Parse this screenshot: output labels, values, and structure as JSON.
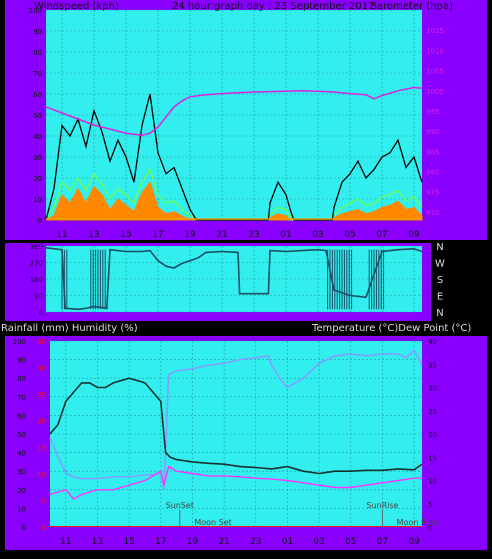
{
  "header": {
    "left_title": "Windspeed (kph)",
    "center_title": "24 hour graph day : 23 September 2017",
    "right_title": "Barometer (hpa)"
  },
  "mid_header": {
    "left": "Rainfall (mm)  Humidity (%)",
    "right": "Temperature (°C)Dew Point (°C)"
  },
  "colors": {
    "frame": "#8a00ff",
    "plot_bg": "#33eeee",
    "grid": "#20a0a0",
    "wind_gust": "#000000",
    "wind_avg": "#66ff55",
    "wind_fill": "#ff8800",
    "barometer": "#dd22dd",
    "direction": "#1a4f66",
    "humidity": "#8899ff",
    "temperature": "#16322e",
    "dewpoint": "#ff33ff",
    "rain_axis": "#ff1111"
  },
  "chart_data": [
    {
      "type": "line",
      "name": "wind_and_barometer",
      "x_ticks": [
        "11",
        "13",
        "15",
        "17",
        "19",
        "21",
        "23",
        "01",
        "03",
        "05",
        "07",
        "09"
      ],
      "y_left_ticks": [
        "0",
        "10",
        "20",
        "30",
        "40",
        "50",
        "60",
        "70",
        "80",
        "90",
        "100"
      ],
      "y_left_range": [
        0,
        100
      ],
      "y_right_ticks": [
        "970",
        "975",
        "980",
        "985",
        "990",
        "995",
        "1000",
        "1005",
        "1010",
        "1015"
      ],
      "y_right_range": [
        968,
        1020
      ],
      "series": [
        {
          "key": "gust",
          "hours": [
            10.0,
            10.5,
            11.0,
            11.5,
            12.0,
            12.5,
            13.0,
            13.5,
            14.0,
            14.5,
            15.0,
            15.5,
            16.0,
            16.5,
            17.0,
            17.5,
            18.0,
            18.5,
            19.0,
            19.4,
            19.6,
            23.9,
            24.0,
            24.5,
            25.0,
            25.3,
            25.5,
            27.9,
            28.0,
            28.5,
            29.0,
            29.5,
            30.0,
            30.5,
            31.0,
            31.5,
            32.0,
            32.5,
            33.0,
            33.5
          ],
          "values": [
            0,
            15,
            45,
            40,
            48,
            35,
            52,
            42,
            28,
            38,
            30,
            18,
            45,
            60,
            32,
            22,
            25,
            15,
            5,
            0,
            0,
            0,
            8,
            18,
            12,
            4,
            0,
            0,
            6,
            18,
            22,
            28,
            20,
            24,
            30,
            32,
            38,
            25,
            30,
            18
          ]
        },
        {
          "key": "average",
          "hours": [
            10.0,
            10.5,
            11.0,
            11.5,
            12.0,
            12.5,
            13.0,
            13.5,
            14.0,
            14.5,
            15.0,
            15.5,
            16.0,
            16.5,
            17.0,
            17.5,
            18.0,
            18.5,
            19.0,
            19.4,
            23.9,
            24.0,
            24.5,
            25.0,
            25.3,
            27.9,
            28.0,
            28.5,
            29.0,
            29.5,
            30.0,
            30.5,
            31.0,
            31.5,
            32.0,
            32.5,
            33.0,
            33.5
          ],
          "values": [
            0,
            6,
            18,
            14,
            20,
            14,
            22,
            17,
            10,
            15,
            12,
            8,
            18,
            24,
            12,
            8,
            9,
            5,
            2,
            0,
            0,
            2,
            6,
            5,
            0,
            0,
            2,
            6,
            8,
            10,
            7,
            8,
            11,
            12,
            14,
            9,
            11,
            6
          ]
        },
        {
          "key": "wind_fill",
          "hours": [
            10.0,
            10.5,
            11.0,
            11.5,
            12.0,
            12.5,
            13.0,
            13.5,
            14.0,
            14.5,
            15.0,
            15.5,
            16.0,
            16.5,
            17.0,
            17.5,
            18.0,
            18.5,
            19.0,
            23.9,
            24.0,
            24.5,
            25.0,
            25.3,
            27.9,
            28.0,
            28.5,
            29.0,
            29.5,
            30.0,
            30.5,
            31.0,
            31.5,
            32.0,
            32.5,
            33.0,
            33.5
          ],
          "values": [
            0,
            2,
            12,
            8,
            15,
            8,
            16,
            12,
            5,
            10,
            7,
            4,
            13,
            18,
            6,
            3,
            4,
            2,
            0,
            0,
            1,
            3,
            2,
            0,
            0,
            1,
            3,
            4,
            5,
            3,
            4,
            6,
            7,
            9,
            5,
            6,
            2
          ]
        },
        {
          "key": "barometer",
          "hours": [
            10.0,
            11.0,
            12.0,
            13.0,
            14.0,
            15.0,
            16.0,
            16.5,
            17.0,
            17.5,
            18.0,
            18.5,
            19.0,
            20.0,
            21.0,
            22.0,
            23.0,
            24.0,
            25.0,
            26.0,
            27.0,
            28.0,
            29.0,
            30.0,
            30.5,
            31.0,
            32.0,
            33.0,
            33.5
          ],
          "values": [
            996,
            994.5,
            993,
            991.5,
            990.5,
            989.5,
            989,
            989.5,
            991,
            993.5,
            996,
            997.5,
            998.5,
            999,
            999.3,
            999.5,
            999.7,
            999.8,
            999.9,
            1000,
            999.9,
            999.7,
            999.3,
            999,
            998,
            998.8,
            1000,
            1000.8,
            1000.6
          ]
        }
      ]
    },
    {
      "type": "line",
      "name": "wind_direction",
      "y_ticks": [
        "0",
        "90",
        "180",
        "270",
        "360"
      ],
      "y_range": [
        0,
        360
      ],
      "compass_labels": [
        "N",
        "W",
        "S",
        "E",
        "N"
      ],
      "series": [
        {
          "key": "direction",
          "hours": [
            10.0,
            11.0,
            11.2,
            12.0,
            12.5,
            13.0,
            13.8,
            14.0,
            15.0,
            16.0,
            16.5,
            17.0,
            17.5,
            18.0,
            18.5,
            19.0,
            19.5,
            20.0,
            21.0,
            22.0,
            22.1,
            23.9,
            24.0,
            25.0,
            26.0,
            27.0,
            27.5,
            28.0,
            29.0,
            30.0,
            31.0,
            32.0,
            33.0,
            33.5
          ],
          "values": [
            350,
            340,
            20,
            15,
            20,
            30,
            20,
            340,
            330,
            330,
            335,
            280,
            250,
            240,
            265,
            280,
            295,
            325,
            330,
            325,
            100,
            100,
            335,
            330,
            335,
            340,
            335,
            120,
            90,
            80,
            330,
            340,
            345,
            330
          ]
        }
      ]
    },
    {
      "type": "line",
      "name": "rain_humidity_temperature",
      "x_ticks": [
        "11",
        "13",
        "15",
        "17",
        "19",
        "21",
        "23",
        "01",
        "03",
        "05",
        "07",
        "09"
      ],
      "y_left_ticks": [
        "0",
        "10",
        "20",
        "30",
        "40",
        "50",
        "60",
        "70",
        "80",
        "90",
        "100"
      ],
      "y_left_range": [
        0,
        100
      ],
      "y_rain_ticks": [
        "0",
        "5",
        "10",
        "15",
        "20",
        "25",
        "30",
        "35"
      ],
      "y_rain_range": [
        0,
        35
      ],
      "y_right_ticks": [
        "0",
        "5",
        "10",
        "15",
        "20",
        "25",
        "30",
        "35",
        "40"
      ],
      "y_right_range": [
        0,
        40
      ],
      "annotations": [
        "SunSet",
        "Moon Set",
        "SunRise",
        "Moon Rise"
      ],
      "series": [
        {
          "key": "humidity",
          "hours": [
            10.0,
            10.5,
            11.0,
            11.5,
            12.0,
            13.0,
            14.0,
            15.0,
            16.0,
            16.5,
            17.0,
            17.2,
            17.5,
            18.0,
            19.0,
            20.0,
            21.0,
            22.0,
            23.0,
            23.8,
            24.0,
            24.5,
            25.0,
            26.0,
            27.0,
            28.0,
            29.0,
            30.0,
            31.0,
            32.0,
            32.5,
            33.0,
            33.5
          ],
          "values": [
            48,
            38,
            29,
            27,
            26,
            26,
            27,
            27,
            28,
            28,
            29,
            20,
            82,
            84,
            85,
            87,
            88,
            90,
            91,
            92,
            87,
            80,
            75,
            80,
            88,
            92,
            93,
            92,
            93,
            93,
            91,
            95,
            87
          ]
        },
        {
          "key": "temperature",
          "hours": [
            10.0,
            10.5,
            11.0,
            11.5,
            12.0,
            12.5,
            13.0,
            13.5,
            14.0,
            15.0,
            15.5,
            16.0,
            16.5,
            17.0,
            17.3,
            17.6,
            18.0,
            19.0,
            20.0,
            21.0,
            22.0,
            23.0,
            24.0,
            25.0,
            26.0,
            27.0,
            28.0,
            29.0,
            30.0,
            31.0,
            32.0,
            33.0,
            33.5
          ],
          "values": [
            20,
            22,
            27,
            29,
            31,
            31,
            30,
            30,
            31,
            32,
            31.5,
            31,
            29,
            27,
            16,
            15,
            14.5,
            14,
            13.7,
            13.5,
            13,
            12.8,
            12.5,
            13,
            12,
            11.5,
            12,
            12,
            12.2,
            12.2,
            12.5,
            12.3,
            13.5
          ]
        },
        {
          "key": "dewpoint",
          "hours": [
            10.0,
            11.0,
            11.5,
            12.0,
            13.0,
            14.0,
            15.0,
            16.0,
            17.0,
            17.2,
            17.5,
            18.0,
            19.0,
            20.0,
            21.0,
            22.0,
            23.0,
            24.0,
            25.0,
            26.0,
            27.0,
            28.0,
            29.0,
            30.0,
            31.0,
            32.0,
            33.0,
            33.5
          ],
          "values": [
            7,
            8,
            6,
            7,
            8,
            8,
            9,
            10,
            12,
            9,
            13,
            12,
            11.5,
            11,
            11,
            10.8,
            10.5,
            10.3,
            10,
            9.5,
            9,
            8.5,
            8.5,
            9,
            9.5,
            10,
            10.5,
            10.5
          ]
        }
      ]
    }
  ]
}
